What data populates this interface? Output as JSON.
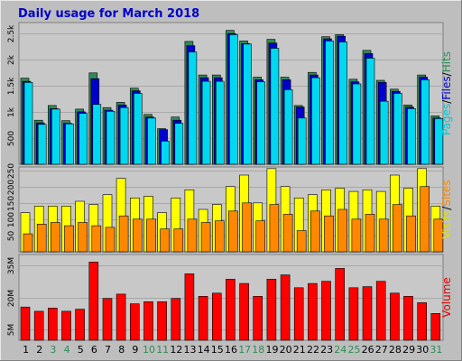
{
  "chart_data": {
    "type": "bar",
    "title": "Daily usage for March 2018",
    "categories": [
      "1",
      "2",
      "3",
      "4",
      "5",
      "6",
      "7",
      "8",
      "9",
      "10",
      "11",
      "12",
      "13",
      "14",
      "15",
      "16",
      "17",
      "18",
      "19",
      "20",
      "21",
      "22",
      "23",
      "24",
      "25",
      "26",
      "27",
      "28",
      "29",
      "30",
      "31"
    ],
    "weekend_days": [
      "3",
      "4",
      "10",
      "11",
      "17",
      "18",
      "24",
      "25",
      "31"
    ],
    "panels": [
      {
        "ylabel_parts": [
          {
            "text": "Pages",
            "color": "#00C8D8"
          },
          {
            "text": "/",
            "color": "#000000"
          },
          {
            "text": "Files",
            "color": "#0000CC"
          },
          {
            "text": "/",
            "color": "#000000"
          },
          {
            "text": "Hits",
            "color": "#2F8B57"
          }
        ],
        "ylim": [
          0,
          2700
        ],
        "yticks": [
          500,
          1000,
          1500,
          2000,
          2500
        ],
        "ytick_labels": [
          "500",
          "1k",
          "1.5k",
          "2k",
          "2.5k"
        ],
        "series": [
          {
            "name": "Hits",
            "color": "#2F8B57",
            "values": [
              1640,
              840,
              1120,
              830,
              1050,
              1740,
              1080,
              1180,
              1450,
              950,
              680,
              900,
              2340,
              1700,
              1700,
              2550,
              2350,
              1660,
              2380,
              1660,
              1120,
              1750,
              2430,
              2470,
              1620,
              2170,
              1600,
              1430,
              1130,
              1700,
              920
            ]
          },
          {
            "name": "Files",
            "color": "#0000CC",
            "values": [
              1580,
              790,
              1060,
              780,
              1000,
              1630,
              1030,
              1130,
              1400,
              900,
              660,
              840,
              2260,
              1650,
              1650,
              2490,
              2300,
              1610,
              2310,
              1610,
              1090,
              1700,
              2390,
              2440,
              1570,
              2110,
              1560,
              1390,
              1090,
              1660,
              880
            ]
          },
          {
            "name": "Pages",
            "color": "#00D8F0",
            "values": [
              1560,
              760,
              1050,
              770,
              970,
              1140,
              1010,
              1080,
              1350,
              880,
              440,
              780,
              2140,
              1580,
              1580,
              2470,
              2290,
              1570,
              2210,
              1420,
              880,
              1650,
              2350,
              2330,
              1530,
              2020,
              1200,
              1350,
              1060,
              1610,
              870
            ]
          }
        ]
      },
      {
        "ylabel_parts": [
          {
            "text": "Visits",
            "color": "#E0E000"
          },
          {
            "text": "/",
            "color": "#000000"
          },
          {
            "text": "Sites",
            "color": "#FF8800"
          }
        ],
        "ylim": [
          0,
          260
        ],
        "yticks": [
          50,
          100,
          150,
          200,
          250
        ],
        "ytick_labels": [
          "50",
          "100",
          "150",
          "200",
          "250"
        ],
        "series": [
          {
            "name": "Visits",
            "color": "#FFFF00",
            "values": [
              120,
              140,
              140,
              140,
              155,
              145,
              175,
              225,
              165,
              170,
              120,
              165,
              190,
              130,
              145,
              200,
              235,
              150,
              255,
              200,
              165,
              175,
              190,
              195,
              185,
              190,
              185,
              235,
              195,
              255,
              140
            ]
          },
          {
            "name": "Sites",
            "color": "#FF8800",
            "values": [
              55,
              85,
              90,
              80,
              90,
              80,
              75,
              110,
              100,
              100,
              70,
              70,
              100,
              90,
              95,
              125,
              150,
              95,
              145,
              115,
              65,
              125,
              110,
              130,
              100,
              115,
              100,
              145,
              110,
              200,
              100
            ]
          }
        ]
      },
      {
        "ylabel_parts": [
          {
            "text": "Volume",
            "color": "#E00000"
          }
        ],
        "ylim": [
          0,
          40
        ],
        "yticks": [
          5,
          20,
          35
        ],
        "ytick_labels": [
          "5M",
          "20M",
          "35M"
        ],
        "series": [
          {
            "name": "Volume",
            "color": "#FF0000",
            "values": [
              15.5,
              13.5,
              15,
              13.5,
              14.5,
              36.5,
              19.5,
              21.5,
              17,
              18,
              18,
              19.5,
              31,
              20.5,
              22,
              28.5,
              26.5,
              20.5,
              28.5,
              30.5,
              24.5,
              26.5,
              27.5,
              33.5,
              24.5,
              25,
              27.5,
              22,
              20.5,
              17.5,
              12.5
            ]
          }
        ]
      }
    ]
  }
}
